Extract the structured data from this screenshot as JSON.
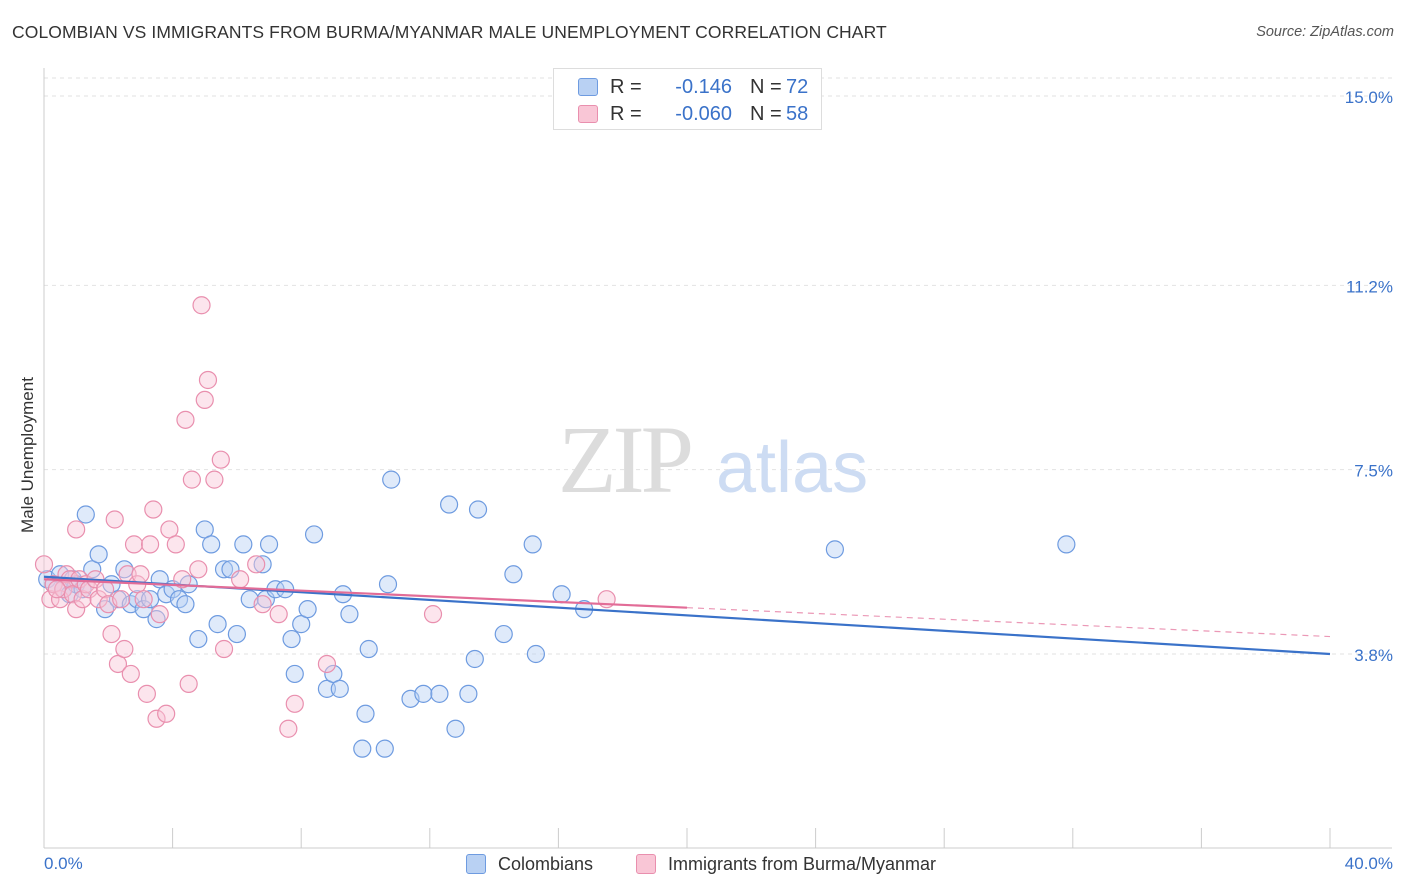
{
  "header": {
    "title": "COLOMBIAN VS IMMIGRANTS FROM BURMA/MYANMAR MALE UNEMPLOYMENT CORRELATION CHART",
    "source": "Source: ZipAtlas.com"
  },
  "watermark": {
    "zip": "ZIP",
    "atlas": "atlas"
  },
  "legend": {
    "rows": [
      {
        "r_label": "R =",
        "r_value": "-0.146",
        "n_label": "N =",
        "n_value": "72",
        "fill": "#b9d1f3",
        "stroke": "#6e9be0"
      },
      {
        "r_label": "R =",
        "r_value": "-0.060",
        "n_label": "N =",
        "n_value": "58",
        "fill": "#f9c6d6",
        "stroke": "#e98fae"
      }
    ],
    "bottom": [
      {
        "label": "Colombians",
        "fill": "#b9d1f3",
        "stroke": "#6e9be0"
      },
      {
        "label": "Immigrants from Burma/Myanmar",
        "fill": "#f9c6d6",
        "stroke": "#e98fae"
      }
    ]
  },
  "chart_data": {
    "type": "scatter",
    "title": "COLOMBIAN VS IMMIGRANTS FROM BURMA/MYANMAR MALE UNEMPLOYMENT CORRELATION CHART",
    "xlabel": "",
    "ylabel": "Male Unemployment",
    "xlim": [
      0,
      40
    ],
    "ylim": [
      0,
      15.5
    ],
    "x_tick_labels": [
      "0.0%",
      "40.0%"
    ],
    "y_ticks": [
      3.8,
      7.5,
      11.2,
      15.0
    ],
    "y_tick_labels": [
      "3.8%",
      "7.5%",
      "11.2%",
      "15.0%"
    ],
    "grid": "horizontal dashed",
    "legend_position": "top-center",
    "colors": {
      "colombians": "#3a72c9",
      "burma": "#e26c97",
      "tick_labels": "#3a72c9"
    },
    "series": [
      {
        "name": "Colombians",
        "r": -0.146,
        "n": 72,
        "trend": {
          "x0": 0.0,
          "y0": 5.35,
          "x1": 40.0,
          "y1": 3.8
        },
        "points": [
          [
            0.1,
            5.3
          ],
          [
            0.3,
            5.2
          ],
          [
            0.5,
            5.4
          ],
          [
            0.6,
            5.1
          ],
          [
            0.8,
            5.0
          ],
          [
            0.9,
            5.3
          ],
          [
            1.0,
            5.2
          ],
          [
            1.2,
            5.1
          ],
          [
            1.3,
            6.6
          ],
          [
            1.5,
            5.5
          ],
          [
            1.7,
            5.8
          ],
          [
            1.9,
            4.7
          ],
          [
            2.1,
            5.2
          ],
          [
            2.3,
            4.9
          ],
          [
            2.5,
            5.5
          ],
          [
            2.7,
            4.8
          ],
          [
            2.9,
            4.9
          ],
          [
            3.1,
            4.7
          ],
          [
            3.3,
            4.9
          ],
          [
            3.5,
            4.5
          ],
          [
            3.6,
            5.3
          ],
          [
            3.8,
            5.0
          ],
          [
            4.0,
            5.1
          ],
          [
            4.2,
            4.9
          ],
          [
            4.4,
            4.8
          ],
          [
            4.5,
            5.2
          ],
          [
            4.8,
            4.1
          ],
          [
            5.0,
            6.3
          ],
          [
            5.2,
            6.0
          ],
          [
            5.4,
            4.4
          ],
          [
            5.6,
            5.5
          ],
          [
            5.8,
            5.5
          ],
          [
            6.0,
            4.2
          ],
          [
            6.2,
            6.0
          ],
          [
            6.4,
            4.9
          ],
          [
            6.8,
            5.6
          ],
          [
            6.9,
            4.9
          ],
          [
            7.0,
            6.0
          ],
          [
            7.2,
            5.1
          ],
          [
            7.5,
            5.1
          ],
          [
            7.7,
            4.1
          ],
          [
            7.8,
            3.4
          ],
          [
            8.0,
            4.4
          ],
          [
            8.2,
            4.7
          ],
          [
            8.4,
            6.2
          ],
          [
            8.8,
            3.1
          ],
          [
            9.0,
            3.4
          ],
          [
            9.3,
            5.0
          ],
          [
            9.5,
            4.6
          ],
          [
            10.1,
            3.9
          ],
          [
            10.7,
            5.2
          ],
          [
            10.8,
            7.3
          ],
          [
            11.4,
            2.9
          ],
          [
            11.8,
            3.0
          ],
          [
            12.3,
            3.0
          ],
          [
            12.6,
            6.8
          ],
          [
            12.8,
            2.3
          ],
          [
            13.2,
            3.0
          ],
          [
            13.4,
            3.7
          ],
          [
            13.5,
            6.7
          ],
          [
            14.3,
            4.2
          ],
          [
            14.6,
            5.4
          ],
          [
            15.3,
            3.8
          ],
          [
            15.2,
            6.0
          ],
          [
            16.1,
            5.0
          ],
          [
            16.8,
            4.7
          ],
          [
            24.6,
            5.9
          ],
          [
            31.8,
            6.0
          ],
          [
            9.2,
            3.1
          ],
          [
            10.0,
            2.6
          ],
          [
            9.9,
            1.9
          ],
          [
            10.6,
            1.9
          ]
        ]
      },
      {
        "name": "Immigrants from Burma/Myanmar",
        "r": -0.06,
        "n": 58,
        "trend": {
          "x0": 0.0,
          "y0": 5.3,
          "x1": 20.0,
          "y1": 4.73,
          "dash_to_x": 40.0,
          "dash_to_y": 4.15
        },
        "points": [
          [
            0.0,
            5.6
          ],
          [
            0.2,
            4.9
          ],
          [
            0.3,
            5.2
          ],
          [
            0.5,
            4.9
          ],
          [
            0.6,
            5.1
          ],
          [
            0.7,
            5.4
          ],
          [
            0.8,
            5.3
          ],
          [
            0.9,
            5.0
          ],
          [
            1.0,
            4.7
          ],
          [
            1.1,
            5.3
          ],
          [
            1.2,
            4.9
          ],
          [
            1.3,
            5.2
          ],
          [
            1.4,
            5.1
          ],
          [
            1.6,
            5.3
          ],
          [
            1.7,
            4.9
          ],
          [
            1.9,
            5.1
          ],
          [
            2.0,
            4.8
          ],
          [
            2.1,
            4.2
          ],
          [
            2.2,
            6.5
          ],
          [
            2.3,
            3.6
          ],
          [
            2.4,
            4.9
          ],
          [
            2.5,
            3.9
          ],
          [
            2.6,
            5.4
          ],
          [
            2.8,
            6.0
          ],
          [
            2.9,
            5.2
          ],
          [
            3.0,
            5.4
          ],
          [
            3.1,
            4.9
          ],
          [
            3.2,
            3.0
          ],
          [
            3.4,
            6.7
          ],
          [
            3.5,
            2.5
          ],
          [
            3.6,
            4.6
          ],
          [
            3.8,
            2.6
          ],
          [
            3.9,
            6.3
          ],
          [
            4.1,
            6.0
          ],
          [
            4.3,
            5.3
          ],
          [
            4.4,
            8.5
          ],
          [
            4.5,
            3.2
          ],
          [
            4.6,
            7.3
          ],
          [
            4.8,
            5.5
          ],
          [
            4.9,
            10.8
          ],
          [
            5.1,
            9.3
          ],
          [
            5.3,
            7.3
          ],
          [
            5.5,
            7.7
          ],
          [
            5.6,
            3.9
          ],
          [
            6.6,
            5.6
          ],
          [
            6.8,
            4.8
          ],
          [
            7.3,
            4.6
          ],
          [
            7.6,
            2.3
          ],
          [
            7.8,
            2.8
          ],
          [
            8.8,
            3.6
          ],
          [
            12.1,
            4.6
          ],
          [
            17.5,
            4.9
          ],
          [
            1.0,
            6.3
          ],
          [
            2.7,
            3.4
          ],
          [
            5.0,
            8.9
          ],
          [
            6.1,
            5.3
          ],
          [
            3.3,
            6.0
          ],
          [
            0.4,
            5.1
          ]
        ]
      }
    ]
  }
}
